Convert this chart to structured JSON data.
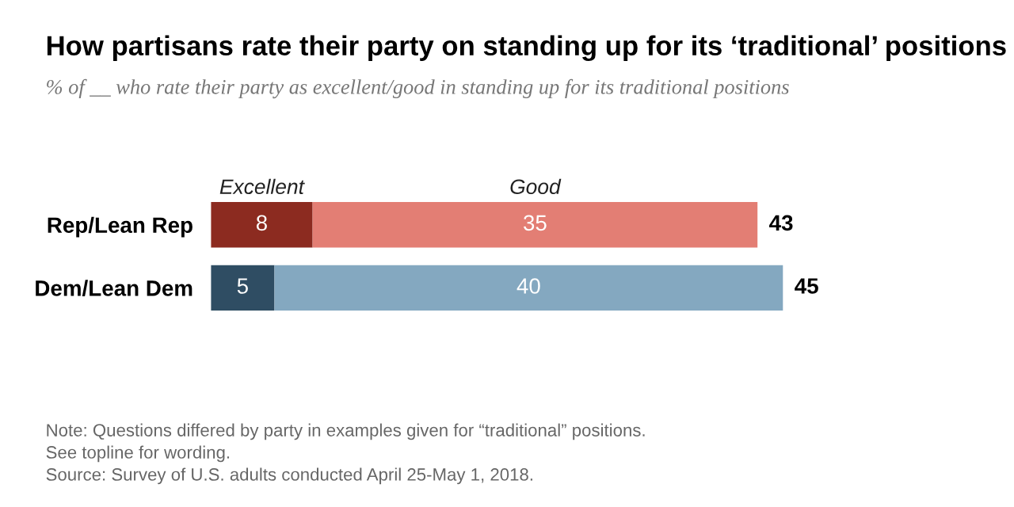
{
  "chart_data": {
    "type": "bar",
    "orientation": "horizontal",
    "stacked": true,
    "title": "How partisans rate their party on standing up for its ‘traditional’ positions",
    "subtitle": "% of __ who rate their party as excellent/good in standing up for its traditional positions",
    "categories": [
      "Rep/Lean Rep",
      "Dem/Lean Dem"
    ],
    "series": [
      {
        "name": "Excellent",
        "colors": [
          "#8c2b20",
          "#2f4d63"
        ],
        "values": [
          8,
          5
        ]
      },
      {
        "name": "Good",
        "colors": [
          "#e37e74",
          "#84a8c0"
        ],
        "values": [
          35,
          40
        ]
      }
    ],
    "data_labels": true,
    "totals": [
      "43",
      "45"
    ],
    "legend": false,
    "annotations": [
      "Note: Questions differed by party in examples given for “traditional” positions.\nSee topline for wording.\nSource: Survey of U.S. adults conducted April 25-May 1, 2018."
    ]
  }
}
